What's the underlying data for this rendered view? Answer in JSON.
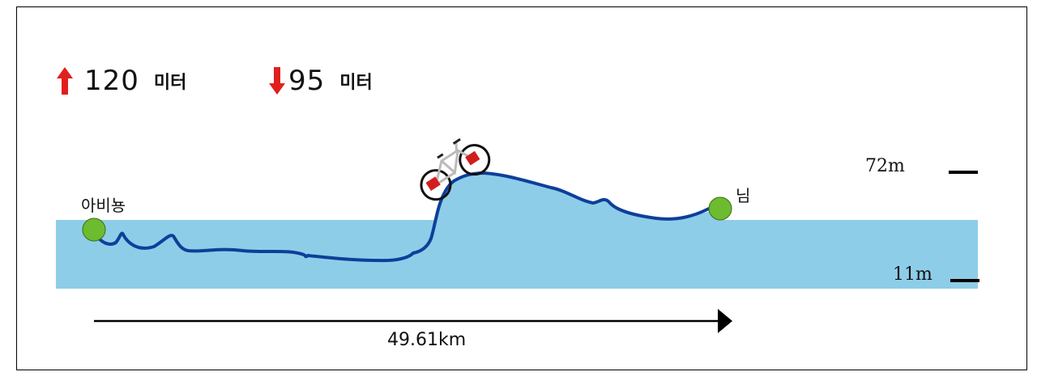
{
  "ascent": {
    "value": "120",
    "unit": "미터",
    "color": "#e0201c",
    "icon": "arrow-up-icon"
  },
  "descent": {
    "value": "95",
    "unit": "미터",
    "color": "#e0201c",
    "icon": "arrow-down-icon"
  },
  "start_label": "아비뇽",
  "end_label": "님",
  "max_elevation": "72m",
  "min_elevation": "11m",
  "distance": "49.61km",
  "colors": {
    "terrain": "#8ecde8",
    "route": "#0e3f9a",
    "marker": "#6dbb2e"
  },
  "icons": [
    "bicycle-icon",
    "start-marker-icon",
    "end-marker-icon",
    "distance-arrow-icon"
  ]
}
